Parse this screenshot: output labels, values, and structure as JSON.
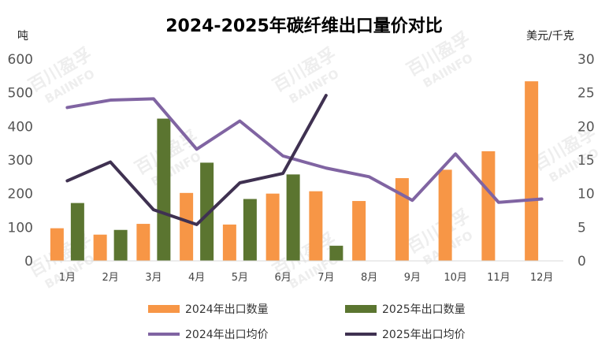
{
  "chart_data": {
    "type": "bar",
    "title": "2024-2025年碳纤维出口量价对比",
    "ylabel": "吨",
    "y2label": "美元/千克",
    "categories": [
      "1月",
      "2月",
      "3月",
      "4月",
      "5月",
      "6月",
      "7月",
      "8月",
      "9月",
      "10月",
      "11月",
      "12月"
    ],
    "ylim": [
      0,
      600
    ],
    "y_ticks": [
      0,
      100,
      200,
      300,
      400,
      500,
      600
    ],
    "y2lim": [
      0,
      30
    ],
    "y2_ticks": [
      0,
      5,
      10,
      15,
      20,
      25,
      30
    ],
    "grid": false,
    "legend_position": "bottom",
    "bar_series": [
      {
        "name": "2024年出口数量",
        "color": "#F79646",
        "values": [
          97,
          78,
          110,
          202,
          108,
          200,
          207,
          178,
          246,
          271,
          326,
          534
        ]
      },
      {
        "name": "2025年出口数量",
        "color": "#5B7530",
        "values": [
          172,
          92,
          423,
          292,
          184,
          257,
          45,
          null,
          null,
          null,
          null,
          null
        ]
      }
    ],
    "line_series": [
      {
        "name": "2024年出口均价",
        "color": "#8064A2",
        "axis": "right",
        "values": [
          22.8,
          23.9,
          24.1,
          16.6,
          20.8,
          15.6,
          13.8,
          12.5,
          9.0,
          15.9,
          8.7,
          9.2
        ]
      },
      {
        "name": "2025年出口均价",
        "color": "#3F3151",
        "axis": "right",
        "values": [
          11.9,
          14.7,
          7.6,
          5.4,
          11.6,
          13.0,
          24.6,
          null,
          null,
          null,
          null,
          null
        ]
      }
    ]
  },
  "watermark": {
    "line1": "百川盈孚",
    "line2": "BAIINFO"
  }
}
